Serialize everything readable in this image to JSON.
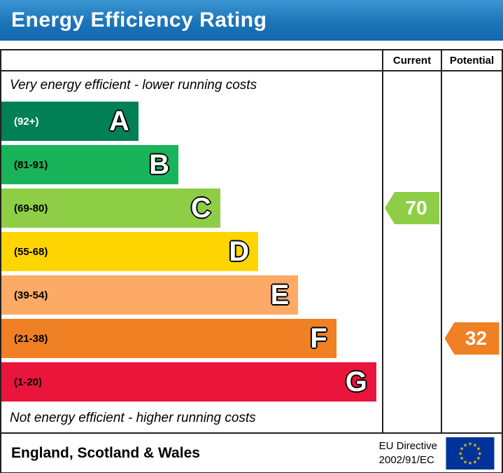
{
  "title": "Energy Efficiency Rating",
  "header": {
    "current": "Current",
    "potential": "Potential"
  },
  "notes": {
    "top": "Very energy efficient - lower running costs",
    "bottom": "Not energy efficient - higher running costs"
  },
  "bands": [
    {
      "letter": "A",
      "range": "(92+)",
      "color": "#008054",
      "text_color": "#ffffff",
      "width_pct": 36
    },
    {
      "letter": "B",
      "range": "(81-91)",
      "color": "#19b459",
      "text_color": "#000000",
      "width_pct": 46.5
    },
    {
      "letter": "C",
      "range": "(69-80)",
      "color": "#8dce46",
      "text_color": "#000000",
      "width_pct": 57.5
    },
    {
      "letter": "D",
      "range": "(55-68)",
      "color": "#ffd500",
      "text_color": "#000000",
      "width_pct": 67.5
    },
    {
      "letter": "E",
      "range": "(39-54)",
      "color": "#fcaa65",
      "text_color": "#000000",
      "width_pct": 78
    },
    {
      "letter": "F",
      "range": "(21-38)",
      "color": "#ef8023",
      "text_color": "#000000",
      "width_pct": 88
    },
    {
      "letter": "G",
      "range": "(1-20)",
      "color": "#e9153b",
      "text_color": "#000000",
      "width_pct": 98.5
    }
  ],
  "ratings": {
    "current": {
      "value": "70",
      "band": "C",
      "color": "#8dce46"
    },
    "potential": {
      "value": "32",
      "band": "F",
      "color": "#ef8023"
    }
  },
  "footer": {
    "region": "England, Scotland & Wales",
    "directive": [
      "EU Directive",
      "2002/91/EC"
    ]
  },
  "chart_data": {
    "type": "bar",
    "title": "Energy Efficiency Rating",
    "categories": [
      "A",
      "B",
      "C",
      "D",
      "E",
      "F",
      "G"
    ],
    "ranges": [
      "92+",
      "81-91",
      "69-80",
      "55-68",
      "39-54",
      "21-38",
      "1-20"
    ],
    "colors": [
      "#008054",
      "#19b459",
      "#8dce46",
      "#ffd500",
      "#fcaa65",
      "#ef8023",
      "#e9153b"
    ],
    "bar_width_pct": [
      36,
      46.5,
      57.5,
      67.5,
      78,
      88,
      98.5
    ],
    "current": {
      "value": 70,
      "band": "C"
    },
    "potential": {
      "value": 32,
      "band": "F"
    },
    "legend_top": "Very energy efficient - lower running costs",
    "legend_bottom": "Not energy efficient - higher running costs",
    "columns": [
      "Current",
      "Potential"
    ]
  }
}
